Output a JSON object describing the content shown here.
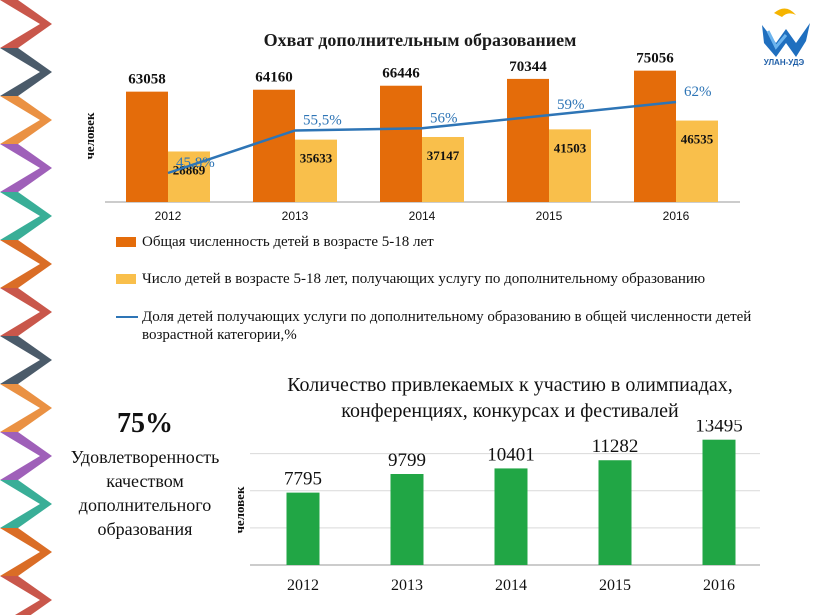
{
  "logo": {
    "text": "УЛАН-УДЭ"
  },
  "chart_data": [
    {
      "type": "bar",
      "title": "Охват дополнительным образованием",
      "ylabel": "человек",
      "categories": [
        "2012",
        "2013",
        "2014",
        "2015",
        "2016"
      ],
      "series": [
        {
          "name": "Общая численность детей в возрасте 5-18 лет",
          "values": [
            63058,
            64160,
            66446,
            70344,
            75056
          ],
          "color": "#e46c0a"
        },
        {
          "name": "Число детей в возрасте 5-18 лет, получающих услугу по дополнительному образованию",
          "values": [
            28869,
            35633,
            37147,
            41503,
            46535
          ],
          "color": "#f9bf4b"
        }
      ],
      "line_series": {
        "name": "Доля детей получающих услуги по дополнительному образованию в общей численности детей возрастной категории,%",
        "values": [
          45.8,
          55.5,
          56,
          59,
          62
        ],
        "labels": [
          "45,8%",
          "55,5%",
          "56%",
          "59%",
          "62%"
        ],
        "color": "#2e75b6"
      },
      "ylim": [
        0,
        80000
      ]
    },
    {
      "type": "bar",
      "title": "Количество привлекаемых к участию в олимпиадах, конференциях, конкурсах и фестивалей",
      "ylabel": "человек",
      "categories": [
        "2012",
        "2013",
        "2014",
        "2015",
        "2016"
      ],
      "values": [
        7795,
        9799,
        10401,
        11282,
        13495
      ],
      "color": "#21a645",
      "ylim": [
        0,
        14000
      ],
      "grid": true
    }
  ],
  "satisfaction": {
    "percent": "75%",
    "label": "Удовлетворенность качеством дополнительного образования"
  }
}
